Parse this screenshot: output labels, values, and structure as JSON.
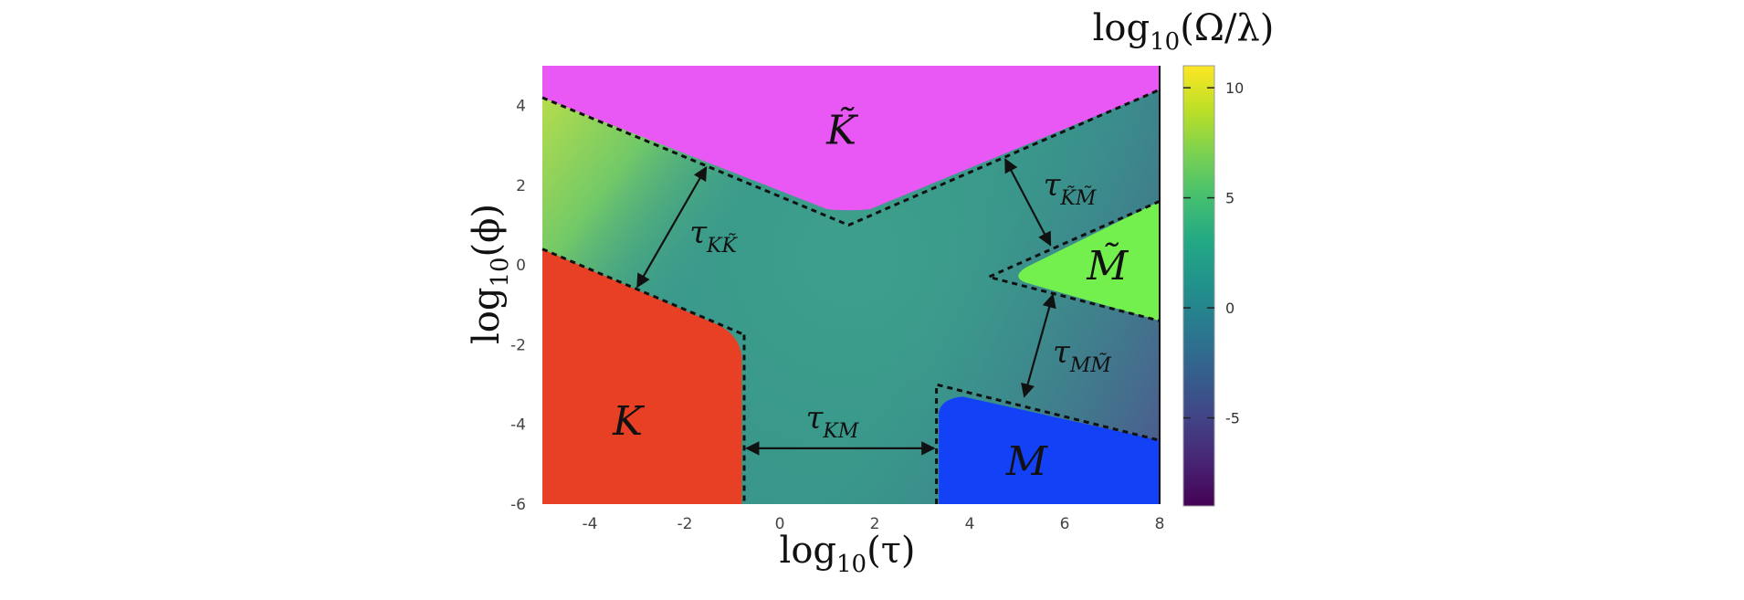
{
  "chart_data": {
    "type": "heatmap",
    "xlabel": {
      "base": "log",
      "sub": "10",
      "arg": "(τ)"
    },
    "ylabel": {
      "base": "log",
      "sub": "10",
      "arg": "(ϕ)"
    },
    "xlim": [
      -5,
      8
    ],
    "ylim": [
      -6,
      5
    ],
    "xticks": [
      -4,
      -2,
      0,
      2,
      4,
      6,
      8
    ],
    "yticks": [
      -6,
      -4,
      -2,
      0,
      2,
      4
    ],
    "xtick_labels": [
      "-4",
      "-2",
      "0",
      "2",
      "4",
      "6",
      "8"
    ],
    "ytick_labels": [
      "-6",
      "-4",
      "-2",
      "0",
      "2",
      "4"
    ],
    "colorbar": {
      "label": {
        "base": "log",
        "sub": "10",
        "arg": "(Ω/λ)"
      },
      "range": [
        -9,
        11
      ],
      "ticks": [
        -5,
        0,
        5,
        10
      ],
      "tick_labels": [
        "-5",
        "0",
        "5",
        "10"
      ],
      "colormap": "viridis"
    },
    "regions": [
      {
        "label": "K",
        "tilde": false,
        "color": "#e84025",
        "center": [
          -3.2,
          -4.0
        ]
      },
      {
        "label": "K",
        "tilde": true,
        "color": "#e957f5",
        "center": [
          1.3,
          3.3
        ]
      },
      {
        "label": "M",
        "tilde": false,
        "color": "#1341f5",
        "center": [
          5.2,
          -5.0
        ]
      },
      {
        "label": "M",
        "tilde": true,
        "color": "#73f04d",
        "center": [
          6.9,
          -0.1
        ]
      }
    ],
    "boundaries": {
      "K_K̃": [
        [
          -5.0,
          0.4
        ],
        [
          -0.75,
          -1.75
        ]
      ],
      "K_M": [
        [
          -0.75,
          -1.75
        ],
        [
          -0.75,
          -6.0
        ]
      ],
      "K̃": [
        [
          -5.0,
          4.2
        ],
        [
          1.45,
          1.0
        ],
        [
          8.0,
          4.4
        ]
      ],
      "M": [
        [
          3.3,
          -6.0
        ],
        [
          3.3,
          -3.0
        ],
        [
          8.0,
          -4.4
        ]
      ],
      "M̃": [
        [
          8.0,
          1.6
        ],
        [
          4.4,
          -0.3
        ],
        [
          8.0,
          -1.4
        ]
      ]
    },
    "arrows": [
      {
        "label": "τ",
        "sub_main": "K",
        "sub_second": "K",
        "sub_second_tilde": true,
        "from": [
          -1.55,
          2.45
        ],
        "to": [
          -3.0,
          -0.55
        ],
        "label_at": [
          -1.9,
          0.55
        ]
      },
      {
        "label": "τ",
        "sub_main": "K",
        "sub_second": "M",
        "sub_second_tilde": false,
        "from": [
          -0.7,
          -4.6
        ],
        "to": [
          3.25,
          -4.6
        ],
        "label_at": [
          0.55,
          -4.1
        ]
      },
      {
        "label": "τ",
        "sub_main": "K",
        "sub_second": "M",
        "sub_main_tilde": true,
        "sub_second_tilde": true,
        "from": [
          4.75,
          2.65
        ],
        "to": [
          5.7,
          0.5
        ],
        "label_at": [
          5.55,
          1.75
        ]
      },
      {
        "label": "τ",
        "sub_main": "M",
        "sub_second": "M",
        "sub_second_tilde": true,
        "from": [
          5.75,
          -0.75
        ],
        "to": [
          5.15,
          -3.3
        ],
        "label_at": [
          5.75,
          -2.45
        ]
      }
    ]
  }
}
